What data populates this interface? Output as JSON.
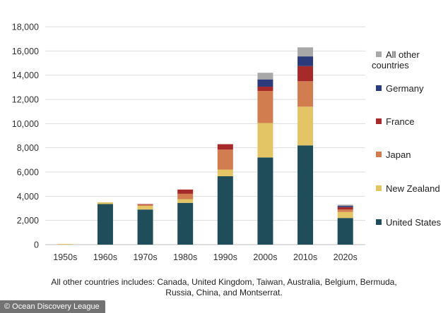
{
  "chart_data": {
    "type": "bar",
    "stacked": true,
    "categories": [
      "1950s",
      "1960s",
      "1970s",
      "1980s",
      "1990s",
      "2000s",
      "2010s",
      "2020s"
    ],
    "series": [
      {
        "name": "United States",
        "color": "#1f4e5a",
        "values": [
          0,
          3350,
          2900,
          3450,
          5650,
          7200,
          8200,
          2200
        ]
      },
      {
        "name": "New Zealand",
        "color": "#e3c565",
        "values": [
          60,
          150,
          300,
          300,
          550,
          2850,
          3200,
          500
        ]
      },
      {
        "name": "Japan",
        "color": "#d27d4f",
        "values": [
          0,
          0,
          100,
          450,
          1650,
          2650,
          2100,
          200
        ]
      },
      {
        "name": "France",
        "color": "#a62a2a",
        "values": [
          0,
          0,
          50,
          350,
          450,
          350,
          1250,
          200
        ]
      },
      {
        "name": "Germany",
        "color": "#2b3a7a",
        "values": [
          0,
          0,
          0,
          0,
          0,
          600,
          800,
          100
        ]
      },
      {
        "name": "All other countries",
        "color": "#a8a8a8",
        "values": [
          0,
          0,
          0,
          0,
          0,
          550,
          750,
          100
        ]
      }
    ],
    "ylim": [
      0,
      18000
    ],
    "yticks": [
      0,
      2000,
      4000,
      6000,
      8000,
      10000,
      12000,
      14000,
      16000,
      18000
    ],
    "ytick_labels": [
      "0",
      "2,000",
      "4,000",
      "6,000",
      "8,000",
      "10,000",
      "12,000",
      "14,000",
      "16,000",
      "18,000"
    ],
    "grid": true,
    "legend_position": "right",
    "legend_order": [
      "All other countries",
      "Germany",
      "France",
      "Japan",
      "New Zealand",
      "United States"
    ],
    "title": "",
    "xlabel": "",
    "ylabel": ""
  },
  "legend_labels": {
    "all_other_line1": "All other",
    "all_other_line2": "countries"
  },
  "footnote": {
    "line1": "All other countries includes: Canada, United Kingdom, Taiwan, Australia, Belgium, Bermuda,",
    "line2": "Russia, China, and Montserrat."
  },
  "credit": "© Ocean Discovery League"
}
